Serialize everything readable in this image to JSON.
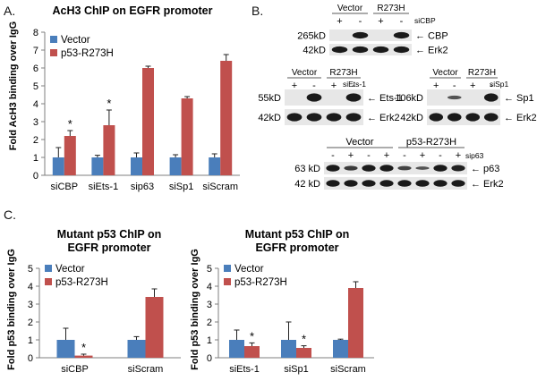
{
  "panels": {
    "a": {
      "letter": "A."
    },
    "b": {
      "letter": "B."
    },
    "c": {
      "letter": "C."
    }
  },
  "colors": {
    "vector": "#4a7ebb",
    "mutant": "#c0504d",
    "axis": "#7f7f7f",
    "band": "#1a1a1a",
    "blot_bg": "#e7e7e7"
  },
  "chart_data": [
    {
      "type": "bar",
      "title": "AcH3 ChIP on EGFR promoter",
      "ylabel": "Fold AcH3 binding over IgG",
      "xlabel": "",
      "categories": [
        "siCBP",
        "siEts-1",
        "sip63",
        "siSp1",
        "siScram"
      ],
      "series": [
        {
          "name": "Vector",
          "values": [
            1.0,
            1.0,
            1.0,
            1.0,
            1.0
          ],
          "errors": [
            0.55,
            0.12,
            0.25,
            0.15,
            0.2
          ]
        },
        {
          "name": "p53-R273H",
          "values": [
            2.2,
            2.8,
            6.0,
            4.3,
            6.4
          ],
          "errors": [
            0.3,
            0.85,
            0.1,
            0.1,
            0.35
          ]
        }
      ],
      "ylim": [
        0,
        8
      ],
      "yticks": [
        "0",
        "1",
        "2",
        "3",
        "4",
        "5",
        "6",
        "7",
        "8"
      ],
      "significance": [
        "*",
        "*",
        "",
        "",
        ""
      ],
      "legend": "top-left"
    },
    {
      "type": "bar",
      "title": "Mutant p53 ChIP on EGFR promoter",
      "ylabel": "Fold p53 binding over IgG",
      "xlabel": "",
      "categories": [
        "siCBP",
        "siScram"
      ],
      "series": [
        {
          "name": "Vector",
          "values": [
            1.0,
            1.0
          ],
          "errors": [
            0.65,
            0.18
          ]
        },
        {
          "name": "p53-R273H",
          "values": [
            0.12,
            3.4
          ],
          "errors": [
            0.08,
            0.45
          ]
        }
      ],
      "ylim": [
        0,
        5
      ],
      "yticks": [
        "0",
        "1",
        "2",
        "3",
        "4",
        "5"
      ],
      "significance": [
        "*",
        ""
      ],
      "legend": "top-left"
    },
    {
      "type": "bar",
      "title": "Mutant p53 ChIP on EGFR promoter",
      "ylabel": "Fold p53 binding over IgG",
      "xlabel": "",
      "categories": [
        "siEts-1",
        "siSp1",
        "siScram"
      ],
      "series": [
        {
          "name": "Vector",
          "values": [
            1.0,
            1.0,
            1.0
          ],
          "errors": [
            0.55,
            1.0,
            0.04
          ]
        },
        {
          "name": "p53-R273H",
          "values": [
            0.65,
            0.55,
            3.9
          ],
          "errors": [
            0.18,
            0.12,
            0.35
          ]
        }
      ],
      "ylim": [
        0,
        5
      ],
      "yticks": [
        "0",
        "1",
        "2",
        "3",
        "4",
        "5"
      ],
      "significance": [
        "*",
        "*",
        ""
      ],
      "legend": "top-left"
    }
  ],
  "chart_titles": {
    "c1": [
      "Mutant p53 ChIP on",
      "EGFR promoter"
    ],
    "c2": [
      "Mutant p53 ChIP on",
      "EGFR promoter"
    ]
  },
  "blots": {
    "cbp": {
      "groups": [
        "Vector",
        "R273H"
      ],
      "signs": [
        "+",
        "-",
        "+",
        "-"
      ],
      "condition": "siCBP",
      "sizes": [
        "265kD",
        "42kD"
      ],
      "targets": [
        "CBP",
        "Erk2"
      ],
      "arrow": "←"
    },
    "ets": {
      "groups": [
        "Vector",
        "R273H"
      ],
      "signs": [
        "+",
        "-",
        "+",
        "-"
      ],
      "condition": "siEts-1",
      "sizes": [
        "55kD",
        "42kD"
      ],
      "targets": [
        "Ets-1",
        "Erk2"
      ],
      "arrow": "←"
    },
    "sp1": {
      "groups": [
        "Vector",
        "R273H"
      ],
      "signs": [
        "+",
        "-",
        "+",
        "-"
      ],
      "condition": "siSp1",
      "sizes": [
        "106kD",
        "42kD"
      ],
      "targets": [
        "Sp1",
        "Erk2"
      ],
      "arrow": "←"
    },
    "p63": {
      "groups": [
        "Vector",
        "p53-R273H"
      ],
      "signs": [
        "-",
        "+",
        "-",
        "+",
        "-",
        "+",
        "-",
        "+"
      ],
      "condition": "sip63",
      "sizes": [
        "63 kD",
        "42 kD"
      ],
      "targets": [
        "p63",
        "Erk2"
      ],
      "arrow": "←"
    }
  }
}
